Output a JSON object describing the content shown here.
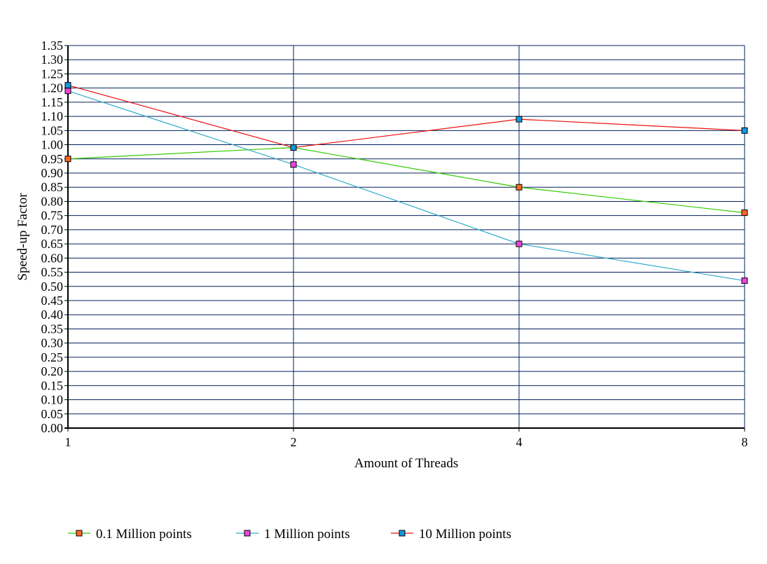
{
  "chart_data": {
    "type": "line",
    "xlabel": "Amount of Threads",
    "ylabel": "Speed-up Factor",
    "categories": [
      "1",
      "2",
      "4",
      "8"
    ],
    "ylim": [
      0,
      1.35
    ],
    "ytick_step": 0.05,
    "y_tick_decimals": 2,
    "grid": true,
    "legend_position": "bottom",
    "series": [
      {
        "name": "0.1 Million points",
        "values": [
          0.95,
          0.99,
          0.85,
          0.76
        ],
        "line_color": "#33cc00",
        "marker_color": "#ff6622"
      },
      {
        "name": "1 Million points",
        "values": [
          1.19,
          0.93,
          0.65,
          0.52
        ],
        "line_color": "#33aacc",
        "marker_color": "#ee44dd"
      },
      {
        "name": "10 Million points",
        "values": [
          1.21,
          0.99,
          1.09,
          1.05
        ],
        "line_color": "#ee1111",
        "marker_color": "#1199dd"
      }
    ],
    "colors": {
      "grid": "#00205b",
      "axis": "#000000"
    }
  }
}
